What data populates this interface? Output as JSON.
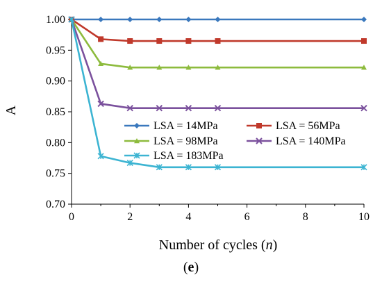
{
  "chart_data": {
    "type": "line",
    "xlabel_prefix": "Number of cycles (",
    "xlabel_var": "n",
    "xlabel_suffix": ")",
    "ylabel": "A",
    "xlim": [
      0,
      10
    ],
    "ylim": [
      0.7,
      1.0
    ],
    "x_ticks": [
      "0",
      "2",
      "4",
      "6",
      "8",
      "10"
    ],
    "y_ticks": [
      "0.70",
      "0.75",
      "0.80",
      "0.85",
      "0.90",
      "0.95",
      "1.00"
    ],
    "grid": false,
    "legend_position": "lower-right",
    "caption_open": "(",
    "caption_letter": "e",
    "caption_close": ")",
    "series": [
      {
        "name": "LSA = 14MPa",
        "color": "#3a78bd",
        "marker": "diamond",
        "x": [
          0,
          1,
          2,
          3,
          4,
          5,
          10
        ],
        "y": [
          1.0,
          1.0,
          1.0,
          1.0,
          1.0,
          1.0,
          1.0
        ]
      },
      {
        "name": "LSA = 56MPa",
        "color": "#c0392b",
        "marker": "square",
        "x": [
          0,
          1,
          2,
          3,
          4,
          5,
          10
        ],
        "y": [
          1.0,
          0.968,
          0.965,
          0.965,
          0.965,
          0.965,
          0.965
        ]
      },
      {
        "name": "LSA = 98MPa",
        "color": "#8dbb3d",
        "marker": "triangle",
        "x": [
          0,
          1,
          2,
          3,
          4,
          5,
          10
        ],
        "y": [
          1.0,
          0.928,
          0.922,
          0.922,
          0.922,
          0.922,
          0.922
        ]
      },
      {
        "name": "LSA = 140MPa",
        "color": "#7b519d",
        "marker": "x",
        "x": [
          0,
          1,
          2,
          3,
          4,
          5,
          10
        ],
        "y": [
          1.0,
          0.863,
          0.856,
          0.856,
          0.856,
          0.856,
          0.856
        ]
      },
      {
        "name": "LSA = 183MPa",
        "color": "#3cb4d2",
        "marker": "star",
        "x": [
          0,
          1,
          2,
          3,
          4,
          5,
          10
        ],
        "y": [
          1.0,
          0.778,
          0.767,
          0.76,
          0.76,
          0.76,
          0.76
        ]
      }
    ]
  }
}
